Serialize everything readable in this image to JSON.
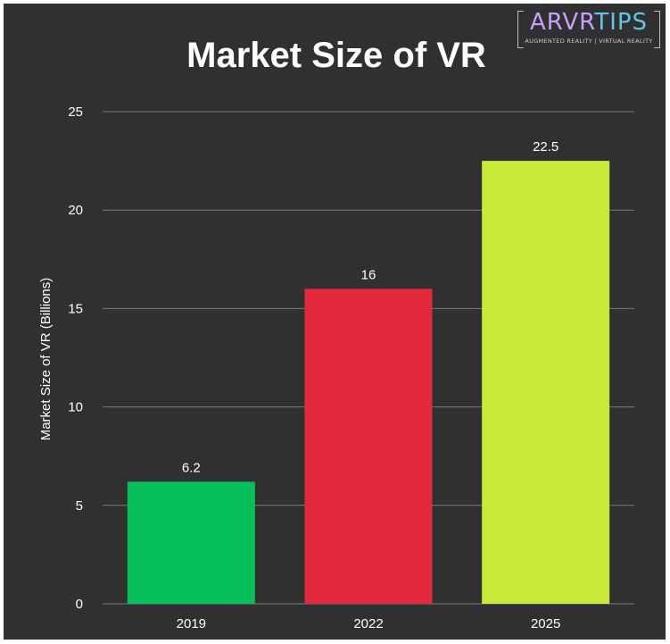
{
  "brand": {
    "logo_text": "ARVRTIPS",
    "logo_part_a": "ARVR",
    "logo_part_b": "TIPS",
    "tagline": "AUGMENTED REALITY | VIRTUAL REALITY"
  },
  "colors": {
    "background": "#303030",
    "grid": "#7a7a7a",
    "text": "#ffffff",
    "bars": [
      "#07bf5b",
      "#e4283d",
      "#c7ea3a"
    ]
  },
  "chart_data": {
    "type": "bar",
    "title": "Market Size of VR",
    "xlabel": "",
    "ylabel": "Market Size of VR (Billions)",
    "categories": [
      "2019",
      "2022",
      "2025"
    ],
    "values": [
      6.2,
      16,
      22.5
    ],
    "value_labels": [
      "6.2",
      "16",
      "22.5"
    ],
    "ylim": [
      0,
      25
    ],
    "yticks": [
      0,
      5,
      10,
      15,
      20,
      25
    ],
    "grid": true,
    "legend": "none"
  }
}
